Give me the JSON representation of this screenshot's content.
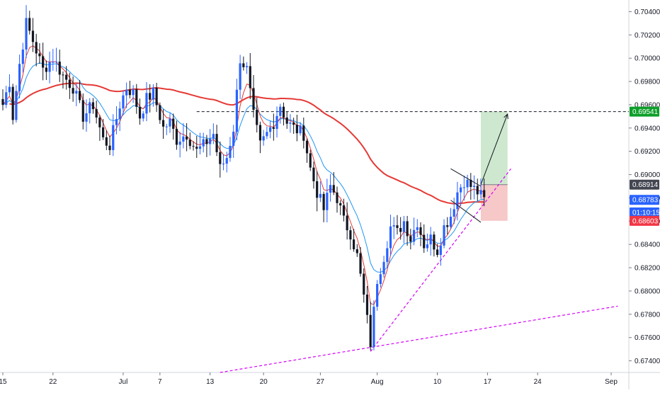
{
  "chart_data": {
    "type": "candlestick",
    "colors": {
      "bull": "#2962ff",
      "bear": "#131722",
      "ma_fast": "#e53935",
      "ma_mid": "#2196f3",
      "ma_slow": "#e53935",
      "support_line": "#d500f9",
      "target_zone": "#a5d6a7",
      "stop_zone": "#ef9a9a",
      "level_line": "#131722"
    },
    "y_axis": {
      "ylim": [
        0.673,
        0.705
      ],
      "ticks": [
        "0.70400",
        "0.70200",
        "0.70000",
        "0.69800",
        "0.69600",
        "0.69400",
        "0.69200",
        "0.69000",
        "0.68800",
        "0.68600",
        "0.68400",
        "0.68200",
        "0.68000",
        "0.67800",
        "0.67600",
        "0.67400"
      ]
    },
    "x_axis": {
      "ticks": [
        {
          "label": "15",
          "bar": 0
        },
        {
          "label": "22",
          "bar": 15
        },
        {
          "label": "Jul",
          "bar": 36
        },
        {
          "label": "7",
          "bar": 47
        },
        {
          "label": "13",
          "bar": 62
        },
        {
          "label": "20",
          "bar": 78
        },
        {
          "label": "27",
          "bar": 95
        },
        {
          "label": "Aug",
          "bar": 112
        },
        {
          "label": "10",
          "bar": 130
        },
        {
          "label": "17",
          "bar": 145
        },
        {
          "label": "24",
          "bar": 160
        },
        {
          "label": "Sep",
          "bar": 182
        }
      ]
    },
    "price_tags": [
      {
        "label": "0.69541",
        "value": 0.69541,
        "color": "#0e9f2a"
      },
      {
        "label": "0.68914",
        "value": 0.68914,
        "color": "#434651"
      },
      {
        "label": "0.68783",
        "value": 0.68783,
        "color": "#2962ff"
      },
      {
        "label": "01:10:15",
        "value": 0.68675,
        "color": "#2962ff"
      },
      {
        "label": "0.68603",
        "value": 0.68603,
        "color": "#f23645"
      }
    ],
    "horizontal_level": 0.69541,
    "position": {
      "start_bar": 143,
      "end_bar": 151,
      "entry": 0.68914,
      "target": 0.69541,
      "stop": 0.68603
    },
    "projection_arrow": {
      "from_bar": 143,
      "from_value": 0.68914,
      "to_bar": 151,
      "to_value": 0.6952
    },
    "trend_lines": [
      {
        "name": "steep support",
        "from_bar": 110,
        "from_value": 0.6748,
        "to_bar": 152,
        "to_value": 0.6905
      },
      {
        "name": "long support",
        "from_bar": 65,
        "from_value": 0.673,
        "to_bar": 184,
        "to_value": 0.6787
      }
    ],
    "triangle": {
      "upper": [
        {
          "bar": 134,
          "value": 0.6905
        },
        {
          "bar": 143,
          "value": 0.689
        }
      ],
      "lower": [
        {
          "bar": 134,
          "value": 0.6878
        },
        {
          "bar": 143,
          "value": 0.6859
        }
      ]
    },
    "anchors": [
      [
        0,
        0.696
      ],
      [
        2,
        0.698
      ],
      [
        3,
        0.695
      ],
      [
        5,
        0.6995
      ],
      [
        7,
        0.703
      ],
      [
        9,
        0.7015
      ],
      [
        12,
        0.699
      ],
      [
        15,
        0.7
      ],
      [
        18,
        0.6985
      ],
      [
        21,
        0.6975
      ],
      [
        24,
        0.695
      ],
      [
        27,
        0.696
      ],
      [
        30,
        0.693
      ],
      [
        32,
        0.6925
      ],
      [
        35,
        0.696
      ],
      [
        37,
        0.6975
      ],
      [
        39,
        0.697
      ],
      [
        41,
        0.695
      ],
      [
        43,
        0.6965
      ],
      [
        45,
        0.697
      ],
      [
        48,
        0.694
      ],
      [
        50,
        0.6945
      ],
      [
        52,
        0.693
      ],
      [
        55,
        0.6935
      ],
      [
        58,
        0.692
      ],
      [
        60,
        0.6925
      ],
      [
        63,
        0.6935
      ],
      [
        65,
        0.6905
      ],
      [
        67,
        0.6915
      ],
      [
        69,
        0.694
      ],
      [
        71,
        0.7
      ],
      [
        73,
        0.699
      ],
      [
        75,
        0.695
      ],
      [
        77,
        0.6925
      ],
      [
        79,
        0.6935
      ],
      [
        81,
        0.6945
      ],
      [
        83,
        0.696
      ],
      [
        85,
        0.6945
      ],
      [
        87,
        0.694
      ],
      [
        90,
        0.6935
      ],
      [
        92,
        0.6905
      ],
      [
        94,
        0.6885
      ],
      [
        96,
        0.687
      ],
      [
        98,
        0.689
      ],
      [
        100,
        0.688
      ],
      [
        102,
        0.686
      ],
      [
        104,
        0.685
      ],
      [
        106,
        0.683
      ],
      [
        108,
        0.6795
      ],
      [
        110,
        0.6755
      ],
      [
        112,
        0.681
      ],
      [
        114,
        0.683
      ],
      [
        116,
        0.6855
      ],
      [
        118,
        0.685
      ],
      [
        120,
        0.686
      ],
      [
        122,
        0.6845
      ],
      [
        124,
        0.686
      ],
      [
        126,
        0.684
      ],
      [
        128,
        0.6845
      ],
      [
        130,
        0.6835
      ],
      [
        132,
        0.6855
      ],
      [
        134,
        0.6865
      ],
      [
        136,
        0.6885
      ],
      [
        138,
        0.6895
      ],
      [
        140,
        0.689
      ],
      [
        142,
        0.6885
      ],
      [
        144,
        0.6878
      ]
    ]
  }
}
